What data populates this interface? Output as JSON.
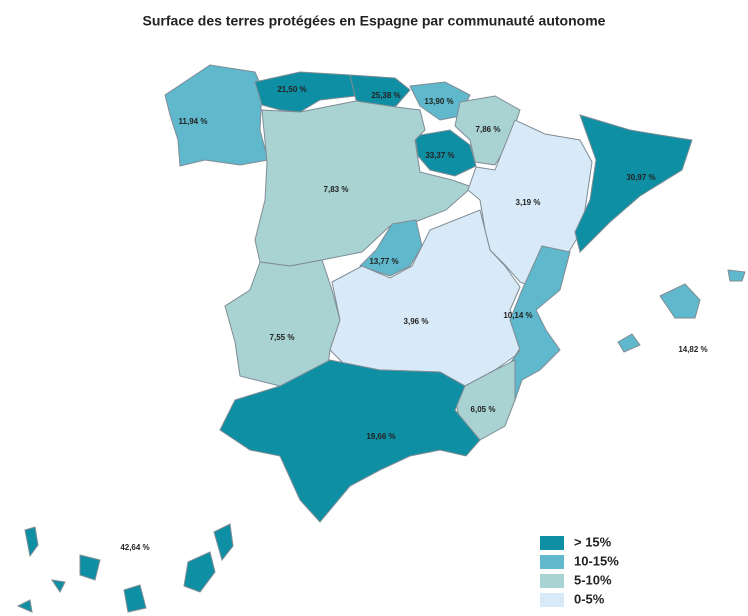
{
  "title": "Surface des terres protégées en Espagne par communauté autonome",
  "regions": [
    {
      "value": 11.94,
      "label": "11,94 %",
      "color": "#5fb8cc"
    },
    {
      "value": 21.5,
      "label": "21,50 %",
      "color": "#0e8fa3"
    },
    {
      "value": 25.38,
      "label": "25,38 %",
      "color": "#0e8fa3"
    },
    {
      "value": 13.9,
      "label": "13,90 %",
      "color": "#5fb8cc"
    },
    {
      "value": 7.86,
      "label": "7,86 %",
      "color": "#a9d3d3"
    },
    {
      "value": 33.37,
      "label": "33,37 %",
      "color": "#0e8fa3"
    },
    {
      "value": 7.83,
      "label": "7,83 %",
      "color": "#a9d3d3"
    },
    {
      "value": 3.19,
      "label": "3,19 %",
      "color": "#d8eaf7"
    },
    {
      "value": 30.97,
      "label": "30,97 %",
      "color": "#0e8fa3"
    },
    {
      "value": 13.77,
      "label": "13,77 %",
      "color": "#5fb8cc"
    },
    {
      "value": 7.55,
      "label": "7,55 %",
      "color": "#a9d3d3"
    },
    {
      "value": 3.96,
      "label": "3,96 %",
      "color": "#d8eaf7"
    },
    {
      "value": 10.14,
      "label": "10,14 %",
      "color": "#5fb8cc"
    },
    {
      "value": 6.05,
      "label": "6,05 %",
      "color": "#a9d3d3"
    },
    {
      "value": 19.66,
      "label": "19,66 %",
      "color": "#0e8fa3"
    },
    {
      "value": 14.82,
      "label": "14,82 %",
      "color": "#5fb8cc"
    },
    {
      "value": 42.64,
      "label": "42,64 %",
      "color": "#0e8fa3"
    }
  ],
  "legend": [
    {
      "label": "> 15%",
      "color": "#0e8fa3"
    },
    {
      "label": "10-15%",
      "color": "#5fb8cc"
    },
    {
      "label": "5-10%",
      "color": "#a9d3d3"
    },
    {
      "label": "0-5%",
      "color": "#d8eaf7"
    }
  ]
}
